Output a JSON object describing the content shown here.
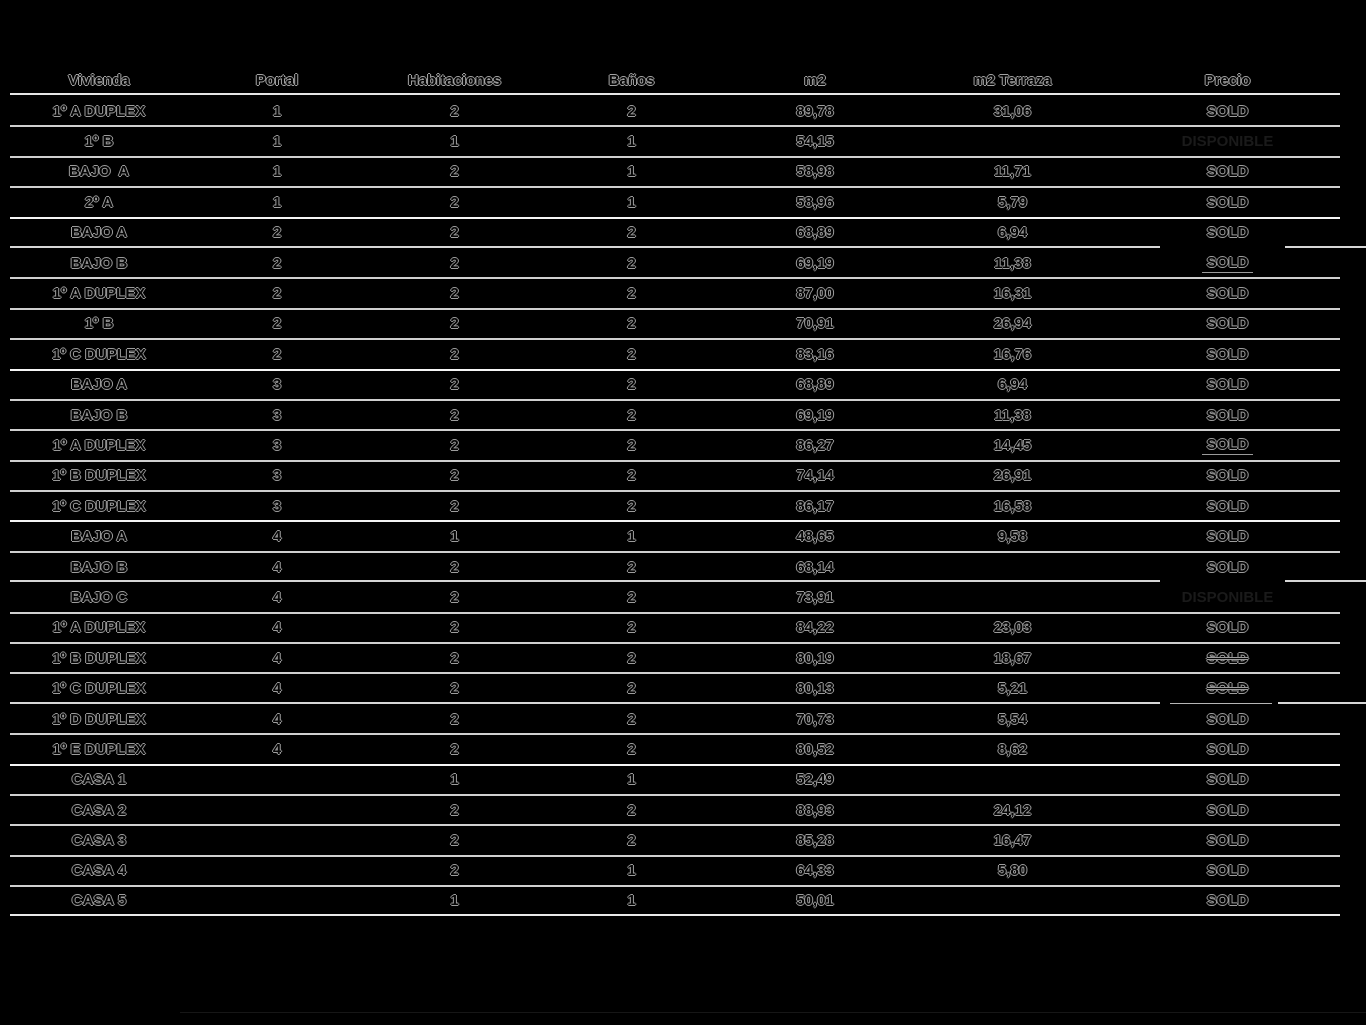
{
  "table": {
    "columns": [
      "Vivienda",
      "Portal",
      "Habitaciones",
      "Baños",
      "m2",
      "m2 Terraza",
      "Precio"
    ],
    "column_keys": [
      "vivienda",
      "portal",
      "habitaciones",
      "banos",
      "m2",
      "terraza",
      "precio"
    ],
    "status_colors": {
      "sold_text": "#050505",
      "sold_outline": "#9c9c9c",
      "disponible_text": "#1a1a1a",
      "line_color": "#cfcfcf"
    },
    "rows": [
      {
        "vivienda": "1º A DUPLEX",
        "portal": "1",
        "habitaciones": "2",
        "banos": "2",
        "m2": "89,78",
        "terraza": "31,06",
        "precio": "SOLD"
      },
      {
        "vivienda": "1º B",
        "portal": "1",
        "habitaciones": "1",
        "banos": "1",
        "m2": "54,15",
        "terraza": "",
        "precio": "DISPONIBLE",
        "precio_style": "disponible"
      },
      {
        "vivienda": "BAJO  A",
        "portal": "1",
        "habitaciones": "2",
        "banos": "1",
        "m2": "58,98",
        "terraza": "11,71",
        "precio": "SOLD"
      },
      {
        "vivienda": "2º A",
        "portal": "1",
        "habitaciones": "2",
        "banos": "1",
        "m2": "58,96",
        "terraza": "5,79",
        "precio": "SOLD"
      },
      {
        "vivienda": "BAJO A",
        "portal": "2",
        "habitaciones": "2",
        "banos": "2",
        "m2": "68,89",
        "terraza": "6,94",
        "precio": "SOLD",
        "group_start": true
      },
      {
        "vivienda": "BAJO B",
        "portal": "2",
        "habitaciones": "2",
        "banos": "2",
        "m2": "69,19",
        "terraza": "11,38",
        "precio": "SOLD",
        "no_top": true,
        "precio_style": "underlined"
      },
      {
        "vivienda": "1º A DUPLEX",
        "portal": "2",
        "habitaciones": "2",
        "banos": "2",
        "m2": "87,00",
        "terraza": "16,31",
        "precio": "SOLD"
      },
      {
        "vivienda": "1º B",
        "portal": "2",
        "habitaciones": "2",
        "banos": "2",
        "m2": "70,91",
        "terraza": "26,94",
        "precio": "SOLD"
      },
      {
        "vivienda": "1º C DUPLEX",
        "portal": "2",
        "habitaciones": "2",
        "banos": "2",
        "m2": "83,16",
        "terraza": "16,76",
        "precio": "SOLD"
      },
      {
        "vivienda": "BAJO A",
        "portal": "3",
        "habitaciones": "2",
        "banos": "2",
        "m2": "68,89",
        "terraza": "6,94",
        "precio": "SOLD",
        "group_start": true
      },
      {
        "vivienda": "BAJO B",
        "portal": "3",
        "habitaciones": "2",
        "banos": "2",
        "m2": "69,19",
        "terraza": "11,38",
        "precio": "SOLD"
      },
      {
        "vivienda": "1º A DUPLEX",
        "portal": "3",
        "habitaciones": "2",
        "banos": "2",
        "m2": "86,27",
        "terraza": "14,45",
        "precio": "SOLD",
        "precio_style": "underlined"
      },
      {
        "vivienda": "1º B DUPLEX",
        "portal": "3",
        "habitaciones": "2",
        "banos": "2",
        "m2": "74,14",
        "terraza": "26,91",
        "precio": "SOLD"
      },
      {
        "vivienda": "1º C DUPLEX",
        "portal": "3",
        "habitaciones": "2",
        "banos": "2",
        "m2": "86,17",
        "terraza": "16,58",
        "precio": "SOLD"
      },
      {
        "vivienda": "BAJO A",
        "portal": "4",
        "habitaciones": "1",
        "banos": "1",
        "m2": "48,65",
        "terraza": "9,58",
        "precio": "SOLD",
        "group_start": true
      },
      {
        "vivienda": "BAJO B",
        "portal": "4",
        "habitaciones": "2",
        "banos": "2",
        "m2": "68,14",
        "terraza": "",
        "precio": "SOLD"
      },
      {
        "vivienda": "BAJO C",
        "portal": "4",
        "habitaciones": "2",
        "banos": "2",
        "m2": "73,91",
        "terraza": "",
        "precio": "DISPONIBLE",
        "precio_style": "disponible",
        "no_top": true
      },
      {
        "vivienda": "1º A DUPLEX",
        "portal": "4",
        "habitaciones": "2",
        "banos": "2",
        "m2": "84,22",
        "terraza": "23,03",
        "precio": "SOLD"
      },
      {
        "vivienda": "1º B DUPLEX",
        "portal": "4",
        "habitaciones": "2",
        "banos": "2",
        "m2": "80,19",
        "terraza": "18,67",
        "precio": "SOLD",
        "precio_style": "struck"
      },
      {
        "vivienda": "1º C DUPLEX",
        "portal": "4",
        "habitaciones": "2",
        "banos": "2",
        "m2": "80,13",
        "terraza": "5,21",
        "precio": "SOLD",
        "precio_style": "struck"
      },
      {
        "vivienda": "1º D DUPLEX",
        "portal": "4",
        "habitaciones": "2",
        "banos": "2",
        "m2": "70,73",
        "terraza": "5,54",
        "precio": "SOLD",
        "no_top": true
      },
      {
        "vivienda": "1º E DUPLEX",
        "portal": "4",
        "habitaciones": "2",
        "banos": "2",
        "m2": "80,52",
        "terraza": "8,62",
        "precio": "SOLD"
      },
      {
        "vivienda": "CASA 1",
        "portal": "",
        "habitaciones": "1",
        "banos": "1",
        "m2": "52,49",
        "terraza": "",
        "precio": "SOLD",
        "group_start": true
      },
      {
        "vivienda": "CASA 2",
        "portal": "",
        "habitaciones": "2",
        "banos": "2",
        "m2": "88,93",
        "terraza": "24,12",
        "precio": "SOLD"
      },
      {
        "vivienda": "CASA 3",
        "portal": "",
        "habitaciones": "2",
        "banos": "2",
        "m2": "85,28",
        "terraza": "16,47",
        "precio": "SOLD"
      },
      {
        "vivienda": "CASA 4",
        "portal": "",
        "habitaciones": "2",
        "banos": "1",
        "m2": "64,33",
        "terraza": "5,80",
        "precio": "SOLD"
      },
      {
        "vivienda": "CASA 5",
        "portal": "",
        "habitaciones": "1",
        "banos": "1",
        "m2": "50,01",
        "terraza": "",
        "precio": "SOLD"
      }
    ]
  }
}
